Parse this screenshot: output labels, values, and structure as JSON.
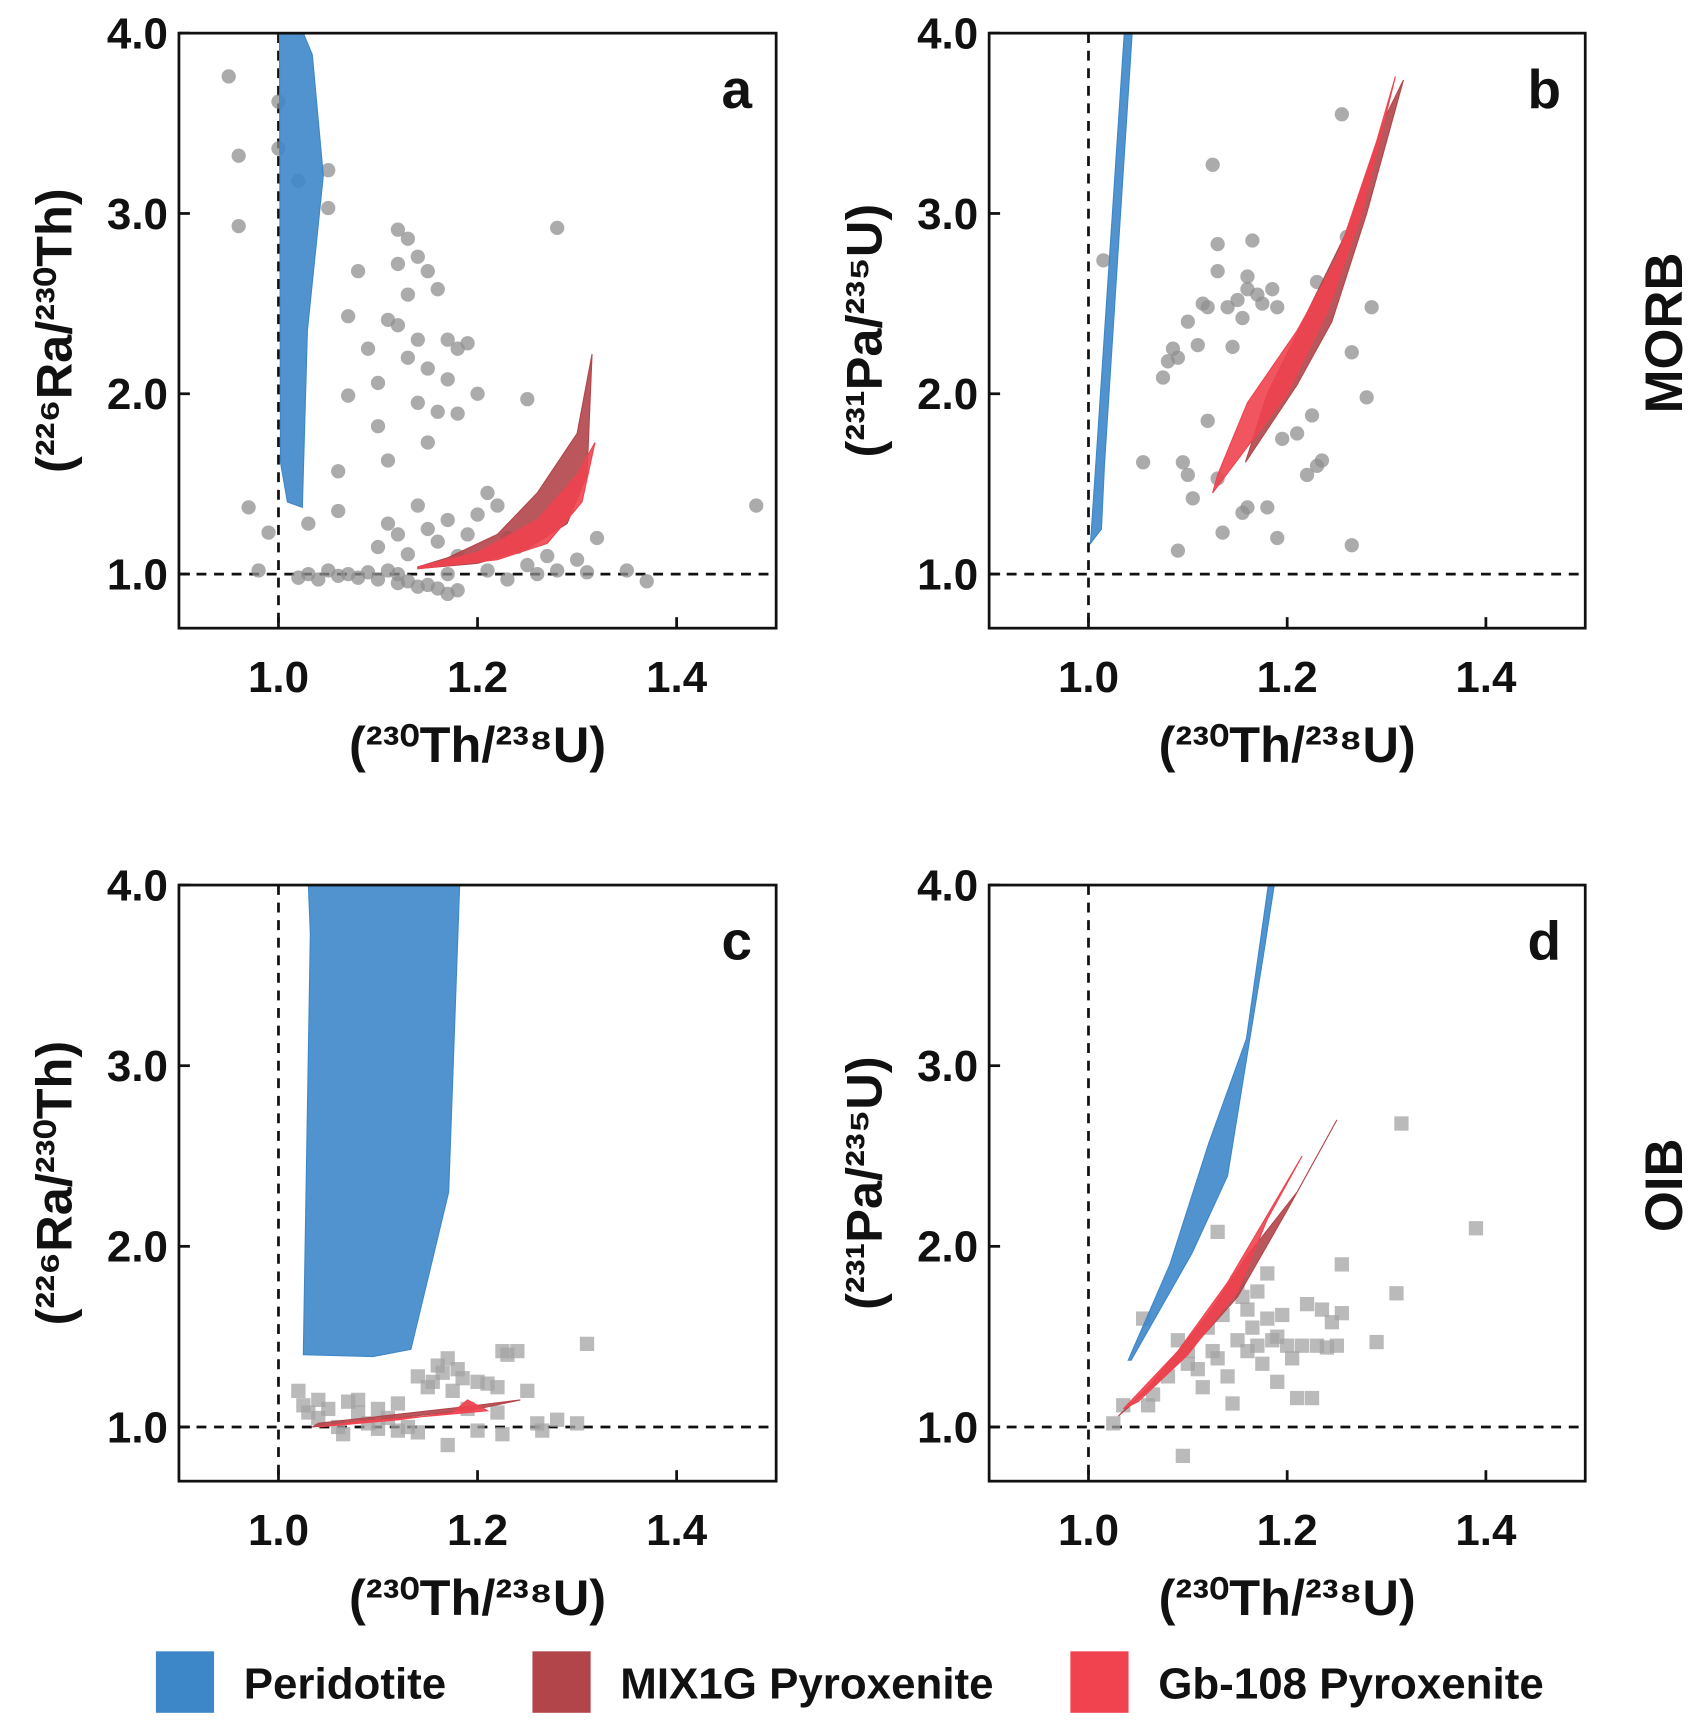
{
  "chart_data": [
    {
      "type": "scatter",
      "label": "a",
      "xlabel": "(²³⁰Th/²³⁸U)",
      "ylabel": "(²²⁶Ra/²³⁰Th)",
      "xlim": [
        0.9,
        1.5
      ],
      "ylim": [
        0.7,
        4.0
      ],
      "xticks": [
        {
          "value": 1,
          "label": "1.0"
        },
        1.2,
        1.4
      ],
      "yticks": [
        {
          "value": 1,
          "label": "1.0"
        },
        {
          "value": 2,
          "label": "2.0"
        },
        {
          "value": 3,
          "label": "3.0"
        },
        {
          "value": 4,
          "label": "4.0"
        }
      ],
      "ref_x": 1,
      "ref_y": 1,
      "regions": [
        {
          "color": "#3d87c9",
          "x": [
            1.001,
            1.002,
            1.009,
            1.024,
            1.029,
            1.045,
            1.034,
            1.025
          ],
          "y": [
            4.0,
            1.62,
            1.4,
            1.37,
            2.35,
            3.21,
            3.88,
            4.0
          ]
        },
        {
          "color": "#b2454a",
          "x": [
            1.14,
            1.2,
            1.25,
            1.29,
            1.31,
            1.315,
            1.3,
            1.26,
            1.22,
            1.17,
            1.14
          ],
          "y": [
            1.03,
            1.06,
            1.14,
            1.28,
            1.55,
            2.22,
            1.78,
            1.45,
            1.22,
            1.09,
            1.04
          ]
        },
        {
          "color": "#f0434f",
          "x": [
            1.14,
            1.22,
            1.27,
            1.305,
            1.318,
            1.3,
            1.26,
            1.2,
            1.14
          ],
          "y": [
            1.03,
            1.08,
            1.17,
            1.4,
            1.73,
            1.55,
            1.3,
            1.12,
            1.04
          ]
        }
      ],
      "series": [
        {
          "color": "#8f8f8f",
          "marker": "circle",
          "x": [
            0.95,
            0.96,
            0.96,
            0.97,
            0.99,
            0.98,
            1.0,
            1.0,
            1.02,
            1.05,
            1.05,
            1.02,
            1.03,
            1.04,
            1.05,
            1.06,
            1.07,
            1.08,
            1.09,
            1.1,
            1.11,
            1.12,
            1.13,
            1.14,
            1.15,
            1.16,
            1.17,
            1.18,
            1.03,
            1.06,
            1.06,
            1.07,
            1.07,
            1.08,
            1.09,
            1.1,
            1.1,
            1.11,
            1.11,
            1.12,
            1.12,
            1.12,
            1.13,
            1.13,
            1.13,
            1.14,
            1.14,
            1.14,
            1.15,
            1.15,
            1.15,
            1.16,
            1.16,
            1.17,
            1.17,
            1.18,
            1.18,
            1.19,
            1.2,
            1.11,
            1.1,
            1.12,
            1.13,
            1.14,
            1.15,
            1.16,
            1.17,
            1.18,
            1.19,
            1.2,
            1.21,
            1.22,
            1.23,
            1.24,
            1.25,
            1.26,
            1.27,
            1.28,
            1.28,
            1.3,
            1.31,
            1.32,
            1.35,
            1.37,
            1.48,
            1.25,
            1.12,
            1.17,
            1.21,
            1.23
          ],
          "values": [
            3.76,
            3.32,
            2.93,
            1.37,
            1.23,
            1.02,
            3.62,
            3.36,
            3.18,
            3.24,
            3.03,
            0.98,
            1.0,
            0.97,
            1.02,
            0.99,
            1.0,
            0.98,
            1.01,
            0.97,
            1.02,
            0.95,
            0.96,
            0.93,
            0.94,
            0.92,
            0.89,
            0.91,
            1.28,
            1.57,
            1.35,
            1.99,
            2.43,
            2.68,
            2.25,
            2.06,
            1.82,
            2.41,
            1.63,
            2.91,
            2.72,
            2.38,
            2.86,
            2.55,
            2.2,
            2.76,
            2.3,
            1.95,
            2.68,
            2.14,
            1.73,
            2.58,
            1.9,
            2.3,
            2.08,
            2.25,
            1.89,
            2.28,
            2.0,
            1.28,
            1.15,
            1.22,
            1.11,
            1.38,
            1.25,
            1.18,
            1.3,
            1.1,
            1.22,
            1.33,
            1.45,
            1.38,
            1.2,
            1.15,
            1.05,
            1.0,
            1.1,
            2.92,
            1.02,
            1.08,
            1.01,
            1.2,
            1.02,
            0.96,
            1.38,
            1.97,
            1.0,
            1.0,
            1.02,
            0.97
          ]
        }
      ]
    },
    {
      "type": "scatter",
      "label": "b",
      "row_label": "MORB",
      "xlabel": "(²³⁰Th/²³⁸U)",
      "ylabel": "(²³¹Pa/²³⁵U)",
      "xlim": [
        0.9,
        1.5
      ],
      "ylim": [
        0.7,
        4.0
      ],
      "xticks": [
        {
          "value": 1,
          "label": "1.0"
        },
        1.2,
        1.4
      ],
      "yticks": [
        {
          "value": 1,
          "label": "1.0"
        },
        {
          "value": 2,
          "label": "2.0"
        },
        {
          "value": 3,
          "label": "3.0"
        },
        {
          "value": 4,
          "label": "4.0"
        }
      ],
      "ref_x": 1,
      "ref_y": 1,
      "regions": [
        {
          "color": "#3d87c9",
          "x": [
            1.002,
            1.009,
            1.02,
            1.036,
            1.044,
            1.03,
            1.016,
            1.013
          ],
          "y": [
            1.17,
            1.74,
            2.66,
            4.0,
            4.0,
            2.8,
            1.6,
            1.25
          ]
        },
        {
          "color": "#b2454a",
          "x": [
            1.158,
            1.21,
            1.245,
            1.28,
            1.317,
            1.3,
            1.26,
            1.22,
            1.18
          ],
          "y": [
            1.62,
            2.05,
            2.4,
            3.0,
            3.74,
            3.55,
            2.9,
            2.45,
            2.0
          ]
        },
        {
          "color": "#f0434f",
          "x": [
            1.125,
            1.2,
            1.24,
            1.275,
            1.309,
            1.29,
            1.25,
            1.21,
            1.16,
            1.13
          ],
          "y": [
            1.45,
            2.0,
            2.45,
            3.0,
            3.76,
            3.4,
            2.75,
            2.35,
            1.95,
            1.55
          ]
        }
      ],
      "series": [
        {
          "color": "#8f8f8f",
          "marker": "circle",
          "x": [
            1.015,
            1.055,
            1.075,
            1.08,
            1.085,
            1.09,
            1.09,
            1.095,
            1.1,
            1.1,
            1.105,
            1.11,
            1.115,
            1.12,
            1.12,
            1.125,
            1.13,
            1.13,
            1.13,
            1.135,
            1.14,
            1.145,
            1.15,
            1.155,
            1.16,
            1.16,
            1.165,
            1.17,
            1.175,
            1.18,
            1.16,
            1.155,
            1.185,
            1.19,
            1.19,
            1.195,
            1.21,
            1.22,
            1.225,
            1.23,
            1.235,
            1.23,
            1.26,
            1.255,
            1.265,
            1.28,
            1.285,
            1.265
          ],
          "values": [
            2.74,
            1.62,
            2.09,
            2.18,
            2.25,
            2.2,
            1.13,
            1.62,
            1.55,
            2.4,
            1.42,
            2.27,
            2.5,
            2.48,
            1.85,
            3.27,
            2.83,
            2.68,
            1.53,
            1.23,
            2.48,
            2.26,
            2.52,
            2.42,
            2.65,
            2.58,
            2.85,
            2.55,
            2.5,
            1.37,
            1.37,
            1.34,
            2.58,
            2.48,
            1.2,
            1.75,
            1.78,
            1.55,
            1.88,
            1.6,
            1.63,
            2.62,
            2.87,
            3.55,
            2.23,
            1.98,
            2.48,
            1.16
          ]
        }
      ]
    },
    {
      "type": "scatter",
      "label": "c",
      "xlabel": "(²³⁰Th/²³⁸U)",
      "ylabel": "(²²⁶Ra/²³⁰Th)",
      "xlim": [
        0.9,
        1.5
      ],
      "ylim": [
        0.7,
        4.0
      ],
      "xticks": [
        {
          "value": 1,
          "label": "1.0"
        },
        1.2,
        1.4
      ],
      "yticks": [
        {
          "value": 1,
          "label": "1.0"
        },
        {
          "value": 2,
          "label": "2.0"
        },
        {
          "value": 3,
          "label": "3.0"
        },
        {
          "value": 4,
          "label": "4.0"
        }
      ],
      "ref_x": 1,
      "ref_y": 1,
      "regions": [
        {
          "color": "#3d87c9",
          "x": [
            1.03,
            1.032,
            1.025,
            1.095,
            1.133,
            1.171,
            1.182
          ],
          "y": [
            4.0,
            3.73,
            1.4,
            1.39,
            1.43,
            2.3,
            4.0
          ]
        },
        {
          "color": "#b2454a",
          "x": [
            1.034,
            1.12,
            1.2,
            1.243,
            1.2,
            1.12,
            1.04
          ],
          "y": [
            1.0,
            1.05,
            1.1,
            1.15,
            1.12,
            1.07,
            1.02
          ]
        },
        {
          "color": "#f0434f",
          "x": [
            1.04,
            1.12,
            1.175,
            1.19,
            1.21,
            1.15,
            1.08
          ],
          "y": [
            1.0,
            1.04,
            1.08,
            1.15,
            1.09,
            1.06,
            1.03
          ]
        }
      ],
      "series": [
        {
          "color": "#a3a3a3",
          "marker": "square",
          "x": [
            1.02,
            1.025,
            1.03,
            1.04,
            1.04,
            1.05,
            1.06,
            1.065,
            1.07,
            1.08,
            1.09,
            1.1,
            1.11,
            1.12,
            1.13,
            1.14,
            1.15,
            1.155,
            1.16,
            1.165,
            1.17,
            1.175,
            1.18,
            1.185,
            1.19,
            1.2,
            1.2,
            1.21,
            1.22,
            1.225,
            1.23,
            1.24,
            1.22,
            1.225,
            1.25,
            1.26,
            1.265,
            1.28,
            1.3,
            1.31,
            1.17,
            1.14,
            1.12,
            1.1,
            1.08
          ],
          "values": [
            1.2,
            1.12,
            1.08,
            1.05,
            1.15,
            1.1,
            1.0,
            0.96,
            1.14,
            1.08,
            1.02,
            1.1,
            1.05,
            0.98,
            1.0,
            1.28,
            1.22,
            1.25,
            1.34,
            1.3,
            1.38,
            1.2,
            1.32,
            1.27,
            1.1,
            1.25,
            0.98,
            1.24,
            1.22,
            1.42,
            1.4,
            1.42,
            1.08,
            0.96,
            1.2,
            1.02,
            0.98,
            1.04,
            1.02,
            1.46,
            0.9,
            0.97,
            1.13,
            0.99,
            1.15
          ]
        }
      ]
    },
    {
      "type": "scatter",
      "label": "d",
      "row_label": "OIB",
      "xlabel": "(²³⁰Th/²³⁸U)",
      "ylabel": "(²³¹Pa/²³⁵U)",
      "xlim": [
        0.9,
        1.5
      ],
      "ylim": [
        0.7,
        4.0
      ],
      "xticks": [
        {
          "value": 1,
          "label": "1.0"
        },
        1.2,
        1.4
      ],
      "yticks": [
        {
          "value": 1,
          "label": "1.0"
        },
        {
          "value": 2,
          "label": "2.0"
        },
        {
          "value": 3,
          "label": "3.0"
        },
        {
          "value": 4,
          "label": "4.0"
        }
      ],
      "ref_x": 1,
      "ref_y": 1,
      "regions": [
        {
          "color": "#3d87c9",
          "x": [
            1.04,
            1.082,
            1.121,
            1.159,
            1.181,
            1.187,
            1.176,
            1.14,
            1.104,
            1.043
          ],
          "y": [
            1.37,
            1.9,
            2.57,
            3.15,
            4.0,
            4.0,
            3.61,
            2.39,
            1.96,
            1.37
          ]
        },
        {
          "color": "#b2454a",
          "x": [
            1.03,
            1.09,
            1.15,
            1.2,
            1.25,
            1.21,
            1.16,
            1.12,
            1.06
          ],
          "y": [
            1.06,
            1.35,
            1.72,
            2.2,
            2.7,
            2.3,
            1.95,
            1.62,
            1.22
          ]
        },
        {
          "color": "#f0434f",
          "x": [
            1.035,
            1.09,
            1.14,
            1.215,
            1.18,
            1.15,
            1.1,
            1.05
          ],
          "y": [
            1.1,
            1.42,
            1.8,
            2.5,
            2.15,
            1.75,
            1.4,
            1.14
          ]
        }
      ],
      "series": [
        {
          "color": "#a3a3a3",
          "marker": "square",
          "x": [
            1.025,
            1.035,
            1.055,
            1.06,
            1.065,
            1.08,
            1.09,
            1.095,
            1.1,
            1.1,
            1.11,
            1.115,
            1.12,
            1.125,
            1.13,
            1.13,
            1.135,
            1.14,
            1.145,
            1.15,
            1.15,
            1.155,
            1.16,
            1.16,
            1.165,
            1.17,
            1.17,
            1.175,
            1.18,
            1.18,
            1.185,
            1.19,
            1.19,
            1.195,
            1.2,
            1.205,
            1.21,
            1.215,
            1.22,
            1.225,
            1.23,
            1.235,
            1.24,
            1.245,
            1.25,
            1.255,
            1.255,
            1.29,
            1.31,
            1.315,
            1.39
          ],
          "values": [
            1.02,
            1.12,
            1.6,
            1.12,
            1.18,
            1.28,
            1.48,
            0.84,
            1.42,
            1.35,
            1.32,
            1.22,
            1.55,
            1.42,
            2.08,
            1.38,
            1.62,
            1.28,
            1.13,
            1.48,
            1.8,
            1.72,
            1.65,
            1.42,
            1.55,
            1.45,
            1.75,
            1.35,
            1.6,
            1.85,
            1.48,
            1.25,
            1.5,
            1.62,
            1.45,
            1.38,
            1.16,
            1.45,
            1.68,
            1.16,
            1.45,
            1.65,
            1.44,
            1.58,
            1.45,
            1.9,
            1.63,
            1.47,
            1.74,
            2.68,
            2.1
          ]
        }
      ]
    }
  ],
  "legend": [
    {
      "name": "Peridotite",
      "color": "#3d87c9"
    },
    {
      "name": "MIX1G Pyroxenite",
      "color": "#b2454a"
    },
    {
      "name": "Gb-108 Pyroxenite",
      "color": "#f0434f"
    }
  ]
}
